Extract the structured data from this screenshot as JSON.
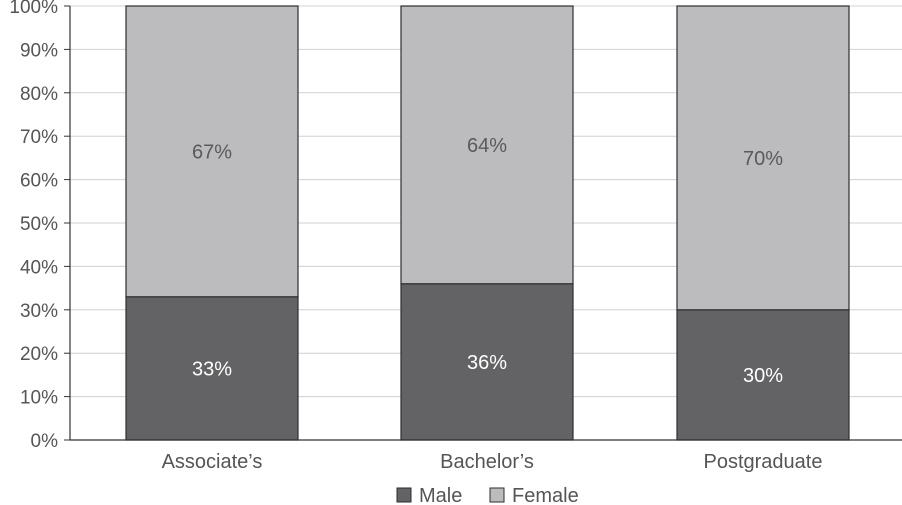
{
  "chart_data": {
    "type": "bar",
    "stacked": true,
    "categories": [
      "Associate’s",
      "Bachelor’s",
      "Postgraduate"
    ],
    "series": [
      {
        "name": "Male",
        "values": [
          33,
          36,
          30
        ],
        "labels": [
          "33%",
          "36%",
          "30%"
        ],
        "color": "#636365",
        "label_color": "#ffffff"
      },
      {
        "name": "Female",
        "values": [
          67,
          64,
          70
        ],
        "labels": [
          "67%",
          "64%",
          "70%"
        ],
        "color": "#bcbcbf",
        "label_color": "#5a5a5a"
      }
    ],
    "ylim": [
      0,
      100
    ],
    "yticks": [
      0,
      10,
      20,
      30,
      40,
      50,
      60,
      70,
      80,
      90,
      100
    ],
    "ytick_labels": [
      "0%",
      "10%",
      "20%",
      "30%",
      "40%",
      "50%",
      "60%",
      "70%",
      "80%",
      "90%",
      "100%"
    ],
    "grid": true,
    "legend_position": "bottom-center",
    "title": "",
    "xlabel": "",
    "ylabel": ""
  }
}
